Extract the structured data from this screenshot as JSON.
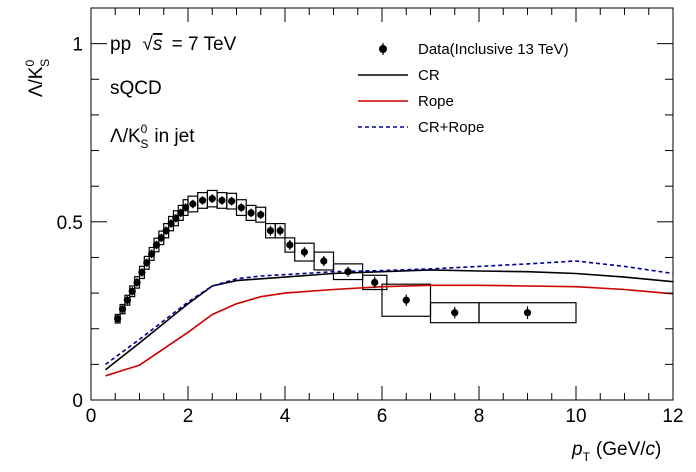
{
  "chart_data": {
    "type": "line",
    "xlabel_italic": "p",
    "xlabel_sub": "T",
    "xlabel_unit": "(GeV/",
    "xlabel_unit_italic": "c",
    "xlabel_close": ")",
    "ylabel_lambda": "Λ/K",
    "ylabel_sup": "0",
    "ylabel_sub": "S",
    "xlim": [
      0,
      12
    ],
    "ylim": [
      0,
      1.1
    ],
    "x_ticks": [
      0,
      2,
      4,
      6,
      8,
      10,
      12
    ],
    "x_tick_labels": [
      "0",
      "2",
      "4",
      "6",
      "8",
      "10",
      "12"
    ],
    "y_ticks": [
      0,
      0.5,
      1
    ],
    "y_tick_labels": [
      "0",
      "0.5",
      "1"
    ],
    "annotations": {
      "system": "pp",
      "sqrt": "√",
      "s_var": "s",
      "energy": "= 7 TeV",
      "model": "sQCD",
      "ratio_lambda": "Λ/K",
      "ratio_sup": "0",
      "ratio_sub": "S",
      "ratio_suffix": "in jet"
    },
    "legend": [
      {
        "label": "Data(Inclusive 13 TeV)",
        "style": "marker"
      },
      {
        "label": "CR",
        "style": "solid",
        "color": "#000000"
      },
      {
        "label": "Rope",
        "style": "solid",
        "color": "#cc0000"
      },
      {
        "label": "CR+Rope",
        "style": "dashed",
        "color": "#000099"
      }
    ],
    "data_points": [
      {
        "x": 0.55,
        "y": 0.228,
        "err": 0.012,
        "bw": 0.05,
        "sys": 0.012
      },
      {
        "x": 0.65,
        "y": 0.255,
        "err": 0.012,
        "bw": 0.05,
        "sys": 0.013
      },
      {
        "x": 0.75,
        "y": 0.28,
        "err": 0.012,
        "bw": 0.05,
        "sys": 0.014
      },
      {
        "x": 0.85,
        "y": 0.305,
        "err": 0.012,
        "bw": 0.05,
        "sys": 0.015
      },
      {
        "x": 0.95,
        "y": 0.33,
        "err": 0.012,
        "bw": 0.05,
        "sys": 0.016
      },
      {
        "x": 1.05,
        "y": 0.358,
        "err": 0.012,
        "bw": 0.05,
        "sys": 0.017
      },
      {
        "x": 1.15,
        "y": 0.385,
        "err": 0.012,
        "bw": 0.05,
        "sys": 0.018
      },
      {
        "x": 1.25,
        "y": 0.41,
        "err": 0.012,
        "bw": 0.05,
        "sys": 0.018
      },
      {
        "x": 1.35,
        "y": 0.435,
        "err": 0.012,
        "bw": 0.05,
        "sys": 0.019
      },
      {
        "x": 1.45,
        "y": 0.455,
        "err": 0.012,
        "bw": 0.05,
        "sys": 0.019
      },
      {
        "x": 1.55,
        "y": 0.475,
        "err": 0.012,
        "bw": 0.05,
        "sys": 0.02
      },
      {
        "x": 1.65,
        "y": 0.495,
        "err": 0.012,
        "bw": 0.05,
        "sys": 0.02
      },
      {
        "x": 1.75,
        "y": 0.51,
        "err": 0.012,
        "bw": 0.05,
        "sys": 0.021
      },
      {
        "x": 1.85,
        "y": 0.525,
        "err": 0.012,
        "bw": 0.05,
        "sys": 0.021
      },
      {
        "x": 1.95,
        "y": 0.54,
        "err": 0.012,
        "bw": 0.05,
        "sys": 0.022
      },
      {
        "x": 2.1,
        "y": 0.55,
        "err": 0.012,
        "bw": 0.1,
        "sys": 0.022
      },
      {
        "x": 2.3,
        "y": 0.56,
        "err": 0.012,
        "bw": 0.1,
        "sys": 0.022
      },
      {
        "x": 2.5,
        "y": 0.565,
        "err": 0.012,
        "bw": 0.1,
        "sys": 0.023
      },
      {
        "x": 2.7,
        "y": 0.56,
        "err": 0.012,
        "bw": 0.1,
        "sys": 0.022
      },
      {
        "x": 2.9,
        "y": 0.558,
        "err": 0.012,
        "bw": 0.1,
        "sys": 0.022
      },
      {
        "x": 3.1,
        "y": 0.54,
        "err": 0.012,
        "bw": 0.1,
        "sys": 0.022
      },
      {
        "x": 3.3,
        "y": 0.525,
        "err": 0.012,
        "bw": 0.1,
        "sys": 0.021
      },
      {
        "x": 3.5,
        "y": 0.52,
        "err": 0.012,
        "bw": 0.1,
        "sys": 0.021
      },
      {
        "x": 3.7,
        "y": 0.475,
        "err": 0.014,
        "bw": 0.1,
        "sys": 0.02
      },
      {
        "x": 3.9,
        "y": 0.475,
        "err": 0.014,
        "bw": 0.1,
        "sys": 0.02
      },
      {
        "x": 4.1,
        "y": 0.435,
        "err": 0.014,
        "bw": 0.1,
        "sys": 0.02
      },
      {
        "x": 4.4,
        "y": 0.415,
        "err": 0.014,
        "bw": 0.2,
        "sys": 0.025
      },
      {
        "x": 4.8,
        "y": 0.39,
        "err": 0.014,
        "bw": 0.2,
        "sys": 0.025
      },
      {
        "x": 5.3,
        "y": 0.36,
        "err": 0.014,
        "bw": 0.3,
        "sys": 0.022
      },
      {
        "x": 5.85,
        "y": 0.33,
        "err": 0.016,
        "bw": 0.25,
        "sys": 0.02
      },
      {
        "x": 6.5,
        "y": 0.28,
        "err": 0.016,
        "bw": 0.5,
        "sys": 0.045
      },
      {
        "x": 7.5,
        "y": 0.245,
        "err": 0.016,
        "bw": 0.5,
        "sys": 0.028
      },
      {
        "x": 9.0,
        "y": 0.245,
        "err": 0.018,
        "bw": 1.0,
        "sys": 0.028
      }
    ],
    "series": [
      {
        "key": "CR",
        "color": "#000000",
        "dash": "",
        "x": [
          0.3,
          1.0,
          2.0,
          2.5,
          3.0,
          3.5,
          4.0,
          5.0,
          6.0,
          7.0,
          8.0,
          9.0,
          10.0,
          11.0,
          12.0
        ],
        "y": [
          0.085,
          0.16,
          0.27,
          0.32,
          0.335,
          0.34,
          0.345,
          0.355,
          0.36,
          0.365,
          0.362,
          0.36,
          0.355,
          0.345,
          0.332
        ]
      },
      {
        "key": "Rope",
        "color": "#cc0000",
        "dash": "",
        "x": [
          0.3,
          1.0,
          2.0,
          2.5,
          3.0,
          3.5,
          4.0,
          5.0,
          6.0,
          7.0,
          8.0,
          9.0,
          10.0,
          11.0,
          12.0
        ],
        "y": [
          0.068,
          0.098,
          0.19,
          0.24,
          0.27,
          0.29,
          0.3,
          0.31,
          0.318,
          0.322,
          0.322,
          0.32,
          0.318,
          0.31,
          0.298
        ]
      },
      {
        "key": "CR+Rope",
        "color": "#000099",
        "dash": "4,3",
        "x": [
          0.3,
          1.0,
          2.0,
          2.5,
          3.0,
          3.5,
          4.0,
          5.0,
          6.0,
          7.0,
          8.0,
          9.0,
          10.0,
          11.0,
          12.0
        ],
        "y": [
          0.1,
          0.17,
          0.275,
          0.32,
          0.34,
          0.348,
          0.352,
          0.36,
          0.363,
          0.368,
          0.375,
          0.382,
          0.39,
          0.375,
          0.355
        ]
      }
    ]
  }
}
